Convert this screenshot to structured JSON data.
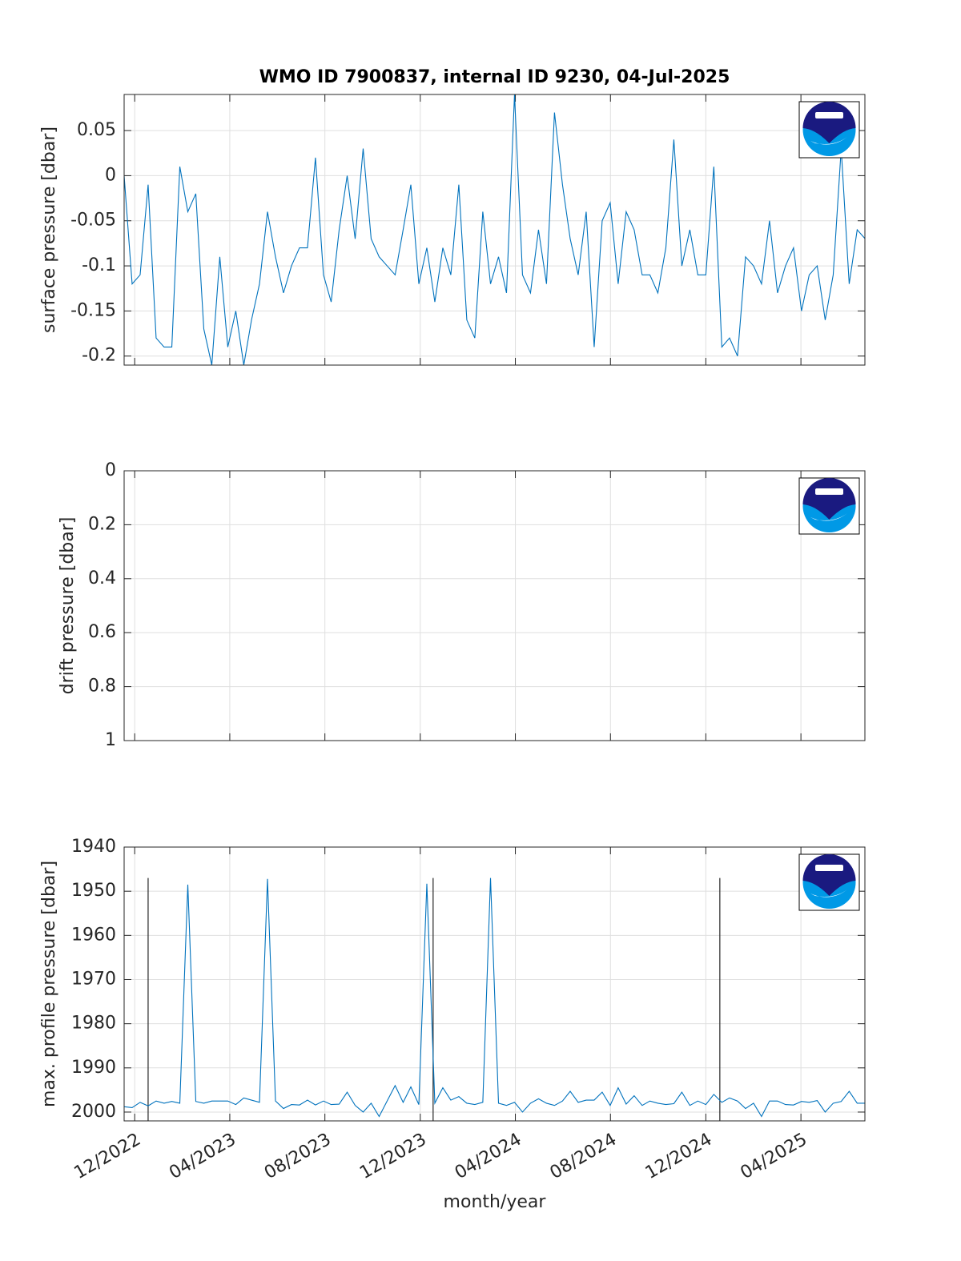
{
  "chart_data": [
    {
      "type": "line",
      "title": "WMO ID 7900837, internal ID 9230, 04-Jul-2025",
      "ylabel": "surface pressure [dbar]",
      "xlim": [
        2022.88,
        2025.474
      ],
      "ylim": [
        -0.21,
        0.09
      ],
      "ydir": "normal",
      "grid": true,
      "xticks": [
        2022.917,
        2023.25,
        2023.583,
        2023.917,
        2024.25,
        2024.583,
        2024.917,
        2025.25
      ],
      "yticks": [
        -0.2,
        -0.15,
        -0.1,
        -0.05,
        0,
        0.05
      ],
      "x": [
        2022.88,
        2022.908,
        2022.936,
        2022.964,
        2022.992,
        2023.02,
        2023.047,
        2023.075,
        2023.103,
        2023.131,
        2023.159,
        2023.187,
        2023.215,
        2023.243,
        2023.271,
        2023.299,
        2023.326,
        2023.354,
        2023.382,
        2023.41,
        2023.438,
        2023.466,
        2023.494,
        2023.522,
        2023.55,
        2023.578,
        2023.605,
        2023.633,
        2023.661,
        2023.689,
        2023.717,
        2023.745,
        2023.773,
        2023.801,
        2023.829,
        2023.857,
        2023.884,
        2023.912,
        2023.94,
        2023.968,
        2023.996,
        2024.024,
        2024.052,
        2024.08,
        2024.108,
        2024.136,
        2024.163,
        2024.191,
        2024.219,
        2024.247,
        2024.275,
        2024.303,
        2024.331,
        2024.359,
        2024.387,
        2024.415,
        2024.442,
        2024.47,
        2024.498,
        2024.526,
        2024.554,
        2024.582,
        2024.61,
        2024.638,
        2024.666,
        2024.694,
        2024.721,
        2024.749,
        2024.777,
        2024.805,
        2024.833,
        2024.861,
        2024.889,
        2024.917,
        2024.945,
        2024.973,
        2025.0,
        2025.028,
        2025.056,
        2025.084,
        2025.112,
        2025.14,
        2025.168,
        2025.196,
        2025.224,
        2025.252,
        2025.279,
        2025.307,
        2025.335,
        2025.363,
        2025.391,
        2025.419,
        2025.447,
        2025.475
      ],
      "series": [
        {
          "color": "#0072bd",
          "values": [
            0,
            -0.12,
            -0.11,
            -0.01,
            -0.18,
            -0.19,
            -0.19,
            0.01,
            -0.04,
            -0.02,
            -0.17,
            -0.21,
            -0.09,
            -0.19,
            -0.15,
            -0.21,
            -0.16,
            -0.12,
            -0.04,
            -0.09,
            -0.13,
            -0.1,
            -0.08,
            -0.08,
            0.02,
            -0.11,
            -0.14,
            -0.06,
            0.0,
            -0.07,
            0.03,
            -0.07,
            -0.09,
            -0.1,
            -0.11,
            -0.06,
            -0.01,
            -0.12,
            -0.08,
            -0.14,
            -0.08,
            -0.11,
            -0.01,
            -0.16,
            -0.18,
            -0.04,
            -0.12,
            -0.09,
            -0.13,
            0.09,
            -0.11,
            -0.13,
            -0.06,
            -0.12,
            0.07,
            -0.01,
            -0.07,
            -0.11,
            -0.04,
            -0.19,
            -0.05,
            -0.03,
            -0.12,
            -0.04,
            -0.06,
            -0.11,
            -0.11,
            -0.13,
            -0.08,
            0.04,
            -0.1,
            -0.06,
            -0.11,
            -0.11,
            0.01,
            -0.19,
            -0.18,
            -0.2,
            -0.09,
            -0.1,
            -0.12,
            -0.05,
            -0.13,
            -0.1,
            -0.08,
            -0.15,
            -0.11,
            -0.1,
            -0.16,
            -0.11,
            0.03,
            -0.12,
            -0.06,
            -0.07
          ]
        }
      ]
    },
    {
      "type": "line",
      "ylabel": "drift pressure [dbar]",
      "xlim": [
        2022.88,
        2025.474
      ],
      "ylim": [
        0,
        1
      ],
      "ydir": "reverse",
      "grid": true,
      "xticks": [
        2022.917,
        2023.25,
        2023.583,
        2023.917,
        2024.25,
        2024.583,
        2024.917,
        2025.25
      ],
      "yticks": [
        0,
        0.2,
        0.4,
        0.6,
        0.8,
        1
      ],
      "x": [],
      "series": []
    },
    {
      "type": "line",
      "ylabel": "max. profile pressure [dbar]",
      "xlabel": "month/year",
      "xlim": [
        2022.88,
        2025.474
      ],
      "ylim": [
        1940,
        2002
      ],
      "ydir": "reverse",
      "grid": true,
      "xticks": [
        {
          "value": 2022.917,
          "label": "12/2022"
        },
        {
          "value": 2023.25,
          "label": "04/2023"
        },
        {
          "value": 2023.583,
          "label": "08/2023"
        },
        {
          "value": 2023.917,
          "label": "12/2023"
        },
        {
          "value": 2024.25,
          "label": "04/2024"
        },
        {
          "value": 2024.583,
          "label": "08/2024"
        },
        {
          "value": 2024.917,
          "label": "12/2024"
        },
        {
          "value": 2025.25,
          "label": "04/2025"
        }
      ],
      "yticks": [
        1940,
        1950,
        1960,
        1970,
        1980,
        1990,
        2000
      ],
      "vlines": {
        "x": [
          2022.964,
          2023.962,
          2024.966
        ],
        "y": 1947,
        "color": "#262626"
      },
      "x": [
        2022.88,
        2022.908,
        2022.936,
        2022.964,
        2022.992,
        2023.02,
        2023.047,
        2023.075,
        2023.103,
        2023.131,
        2023.159,
        2023.187,
        2023.215,
        2023.243,
        2023.271,
        2023.299,
        2023.326,
        2023.354,
        2023.382,
        2023.41,
        2023.438,
        2023.466,
        2023.494,
        2023.522,
        2023.55,
        2023.578,
        2023.605,
        2023.633,
        2023.661,
        2023.689,
        2023.717,
        2023.745,
        2023.773,
        2023.801,
        2023.829,
        2023.857,
        2023.884,
        2023.912,
        2023.94,
        2023.968,
        2023.996,
        2024.024,
        2024.052,
        2024.08,
        2024.108,
        2024.136,
        2024.163,
        2024.191,
        2024.219,
        2024.247,
        2024.275,
        2024.303,
        2024.331,
        2024.359,
        2024.387,
        2024.415,
        2024.442,
        2024.47,
        2024.498,
        2024.526,
        2024.554,
        2024.582,
        2024.61,
        2024.638,
        2024.666,
        2024.694,
        2024.721,
        2024.749,
        2024.777,
        2024.805,
        2024.833,
        2024.861,
        2024.889,
        2024.917,
        2024.945,
        2024.973,
        2025.0,
        2025.028,
        2025.056,
        2025.084,
        2025.112,
        2025.14,
        2025.168,
        2025.196,
        2025.224,
        2025.252,
        2025.279,
        2025.307,
        2025.335,
        2025.363,
        2025.391,
        2025.419,
        2025.447,
        2025.475
      ],
      "series": [
        {
          "color": "#0072bd",
          "values": [
            1998.8,
            1999,
            1997.8,
            1998.6,
            1997.5,
            1998,
            1997.6,
            1998,
            1948.5,
            1997.6,
            1998,
            1997.5,
            1997.5,
            1997.5,
            1998.3,
            1996.8,
            1997.3,
            1997.8,
            1947.2,
            1997.5,
            1999.2,
            1998.3,
            1998.4,
            1997.3,
            1998.4,
            1997.5,
            1998.3,
            1998.2,
            1995.5,
            1998.5,
            2000,
            1998,
            2001,
            1997.5,
            1994,
            1997.8,
            1994.3,
            1998.3,
            1948.3,
            1998,
            1994.5,
            1997.3,
            1996.5,
            1998,
            1998.3,
            1997.8,
            1947,
            1998,
            1998.5,
            1997.8,
            2000,
            1998,
            1997,
            1998,
            1998.5,
            1997.5,
            1995.3,
            1997.8,
            1997.3,
            1997.3,
            1995.5,
            1998.5,
            1994.5,
            1998.2,
            1996.3,
            1998.5,
            1997.5,
            1998,
            1998.3,
            1998.1,
            1995.5,
            1998.5,
            1997.5,
            1998.3,
            1996,
            1997.8,
            1996.8,
            1997.5,
            1999.2,
            1998,
            2001,
            1997.5,
            1997.5,
            1998.3,
            1998.4,
            1997.6,
            1997.8,
            1997.4,
            2000,
            1998,
            1997.6,
            1995.3,
            1998,
            1998
          ]
        }
      ]
    }
  ]
}
